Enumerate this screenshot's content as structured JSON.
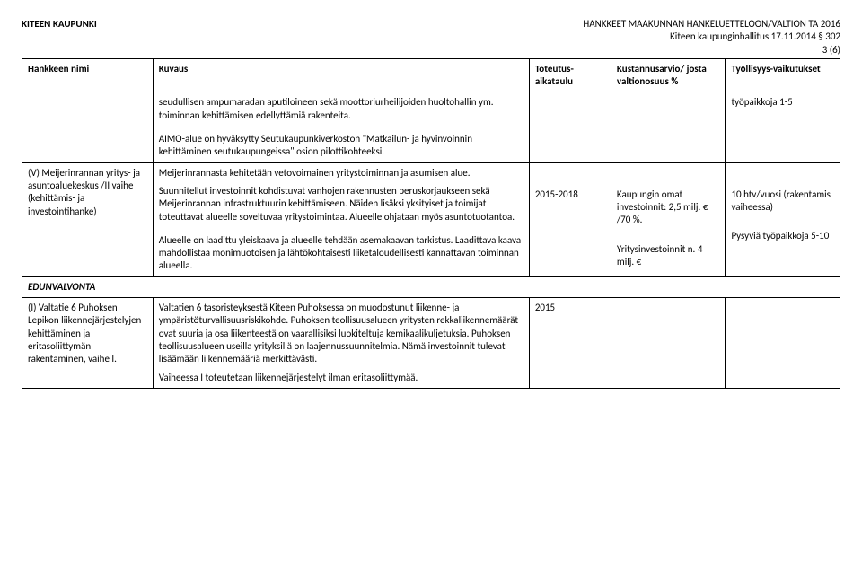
{
  "header": {
    "left": "KITEEN KAUPUNKI",
    "right_line1": "HANKKEET MAAKUNNAN HANKELUETTELOON/VALTION TA 2016",
    "right_line2": "Kiteen kaupunginhallitus 17.11.2014 § 302",
    "right_line3": "3 (6)"
  },
  "columns": {
    "c1": "Hankkeen nimi",
    "c2": "Kuvaus",
    "c3": "Toteutus-aikataulu",
    "c4": "Kustannusarvio/ josta valtionosuus %",
    "c5": "Työllisyys-vaikutukset"
  },
  "row1": {
    "c1": "",
    "c2a": "seudullisen ampumaradan aputiloineen sekä moottoriurheilijoiden huoltohallin ym. toiminnan kehittämisen edellyttämiä rakenteita.",
    "c2b": "AIMO-alue on hyväksytty Seutukaupunkiverkoston \"Matkailun- ja hyvinvoinnin kehittäminen seutukaupungeissa\" osion pilottikohteeksi.",
    "c3": "",
    "c4": "",
    "c5": "työpaikkoja 1-5"
  },
  "row2": {
    "c1": "(V) Meijerinrannan yritys- ja asuntoaluekeskus /II vaihe (kehittämis- ja investointihanke)",
    "c2a": "Meijerinrannasta kehitetään vetovoimainen yritystoiminnan ja asumisen alue.",
    "c2b": "Suunnitellut investoinnit kohdistuvat vanhojen rakennusten peruskorjaukseen sekä Meijerinrannan infrastruktuurin kehittämiseen. Näiden lisäksi yksityiset ja toimijat toteuttavat alueelle soveltuvaa yritystoimintaa. Alueelle ohjataan myös asuntotuotantoa.",
    "c2c": "Alueelle on laadittu yleiskaava ja alueelle tehdään asemakaavan tarkistus. Laadittava kaava mahdollistaa monimuotoisen ja lähtökohtaisesti liiketaloudellisesti kannattavan toiminnan alueella.",
    "c3": "2015-2018",
    "c4a": "Kaupungin omat investoinnit: 2,5 milj. € /70 %.",
    "c4b": "Yritysinvestoinnit n. 4 milj. €",
    "c5a": "10 htv/vuosi (rakentamis vaiheessa)",
    "c5b": "Pysyviä työpaikkoja 5-10"
  },
  "section": "EDUNVALVONTA",
  "row3": {
    "c1": "(I) Valtatie 6 Puhoksen Lepikon liikennejärjestelyjen kehittäminen ja eritasoliittymän rakentaminen, vaihe I.",
    "c2a": "Valtatien 6 tasoristeyksestä Kiteen Puhoksessa on muodostunut liikenne- ja ympäristöturvallisuusriskikohde. Puhoksen teollisuusalueen yritysten rekkaliikennemäärät ovat suuria ja osa liikenteestä on vaarallisiksi luokiteltuja kemikaalikuljetuksia. Puhoksen teollisuusalueen useilla yrityksillä on laajennussuunnitelmia. Nämä investoinnit tulevat lisäämään liikennemääriä merkittävästi.",
    "c2b": "Vaiheessa I toteutetaan liikennejärjestelyt ilman eritasoliittymää.",
    "c3": "2015",
    "c4": "",
    "c5": ""
  }
}
